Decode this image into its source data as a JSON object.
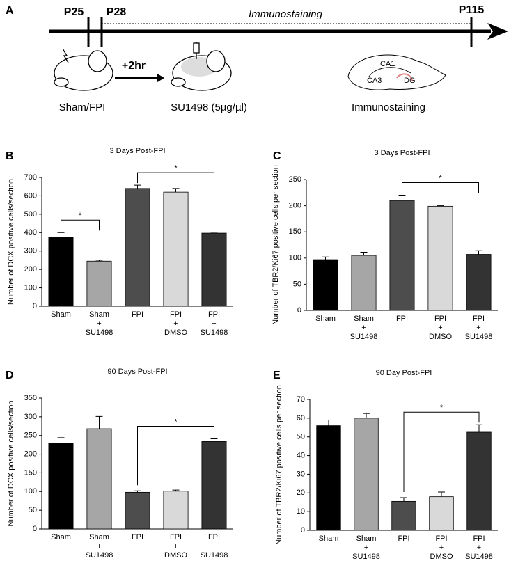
{
  "timeline": {
    "panel": "A",
    "p25": "P25",
    "p28": "P28",
    "p115": "P115",
    "period": "Immunostaining",
    "delay": "+2hr",
    "step1": "Sham/FPI",
    "step2": "SU1498 (5µg/µl)",
    "step3": "Immunostaining",
    "region1": "CA1",
    "region2": "CA3",
    "region3": "DG"
  },
  "chart_data": [
    {
      "type": "bar",
      "panel": "B",
      "title": "3 Days Post-FPI",
      "y_label": "Number of DCX positive cells/section",
      "categories": [
        [
          "Sham"
        ],
        [
          "Sham",
          "+",
          "SU1498"
        ],
        [
          "FPI"
        ],
        [
          "FPI",
          "+",
          "DMSO"
        ],
        [
          "FPI",
          "+",
          "SU1498"
        ]
      ],
      "values": [
        375,
        245,
        640,
        620,
        397
      ],
      "errors": [
        25,
        5,
        18,
        20,
        5
      ],
      "colors": [
        "#000000",
        "#a6a6a6",
        "#4d4d4d",
        "#d9d9d9",
        "#333333"
      ],
      "ylim": [
        0,
        700
      ],
      "yticks": [
        0,
        100,
        200,
        300,
        400,
        500,
        600,
        700
      ],
      "annotations": [
        "*",
        "*"
      ]
    },
    {
      "type": "bar",
      "panel": "C",
      "title": "3 Days Post-FPI",
      "y_label": "Number of TBR2/Ki67 positive cells per section",
      "categories": [
        [
          "Sham"
        ],
        [
          "Sham",
          "+",
          "SU1498"
        ],
        [
          "FPI"
        ],
        [
          "FPI",
          "+",
          "DMSO"
        ],
        [
          "FPI",
          "+",
          "SU1498"
        ]
      ],
      "values": [
        97,
        105,
        210,
        199,
        107
      ],
      "errors": [
        5,
        6,
        10,
        1,
        7
      ],
      "colors": [
        "#000000",
        "#a6a6a6",
        "#4d4d4d",
        "#d9d9d9",
        "#333333"
      ],
      "ylim": [
        0,
        250
      ],
      "yticks": [
        0,
        50,
        100,
        150,
        200,
        250
      ],
      "annotations": [
        "*"
      ]
    },
    {
      "type": "bar",
      "panel": "D",
      "title": "90 Days Post-FPI",
      "y_label": "Number of DCX positive cells/section",
      "categories": [
        [
          "Sham"
        ],
        [
          "Sham",
          "+",
          "SU1498"
        ],
        [
          "FPI"
        ],
        [
          "FPI",
          "+",
          "DMSO"
        ],
        [
          "FPI",
          "+",
          "SU1498"
        ]
      ],
      "values": [
        229,
        268,
        98,
        101,
        234
      ],
      "errors": [
        15,
        33,
        4,
        3,
        7
      ],
      "colors": [
        "#000000",
        "#a6a6a6",
        "#4d4d4d",
        "#d9d9d9",
        "#333333"
      ],
      "ylim": [
        0,
        350
      ],
      "yticks": [
        0,
        50,
        100,
        150,
        200,
        250,
        300,
        350
      ],
      "annotations": [
        "*"
      ]
    },
    {
      "type": "bar",
      "panel": "E",
      "title": "90 Day Post-FPI",
      "y_label": "Number of TBR2/Ki67 positive cells per section",
      "categories": [
        [
          "Sham"
        ],
        [
          "Sham",
          "+",
          "SU1498"
        ],
        [
          "FPI"
        ],
        [
          "FPI",
          "+",
          "DMSO"
        ],
        [
          "FPI",
          "+",
          "SU1498"
        ]
      ],
      "values": [
        56,
        60,
        15.5,
        18,
        52.5
      ],
      "errors": [
        3,
        2.5,
        2,
        2.5,
        4
      ],
      "colors": [
        "#000000",
        "#a6a6a6",
        "#4d4d4d",
        "#d9d9d9",
        "#333333"
      ],
      "ylim": [
        0,
        70
      ],
      "yticks": [
        0,
        10,
        20,
        30,
        40,
        50,
        60,
        70
      ],
      "annotations": [
        "*"
      ]
    }
  ]
}
